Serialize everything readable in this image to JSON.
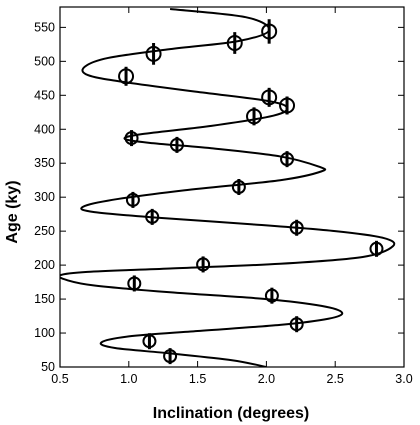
{
  "chart_data": {
    "type": "scatter",
    "title": "",
    "xlabel": "Inclination (degrees)",
    "ylabel": "Age (ky)",
    "xlim": [
      0.5,
      3.0
    ],
    "ylim": [
      50,
      580
    ],
    "xticks": [
      "0.5",
      "1.0",
      "1.5",
      "2.0",
      "2.5",
      "3.0"
    ],
    "yticks": [
      "50",
      "100",
      "150",
      "200",
      "250",
      "300",
      "350",
      "400",
      "450",
      "500",
      "550"
    ],
    "grid": false,
    "legend": "none",
    "series": [
      {
        "kind": "points",
        "x": [
          1.3,
          1.15,
          2.22,
          1.04,
          2.04,
          1.54,
          2.8,
          2.22,
          1.17,
          1.03,
          1.8,
          2.15,
          1.35,
          1.02,
          1.91,
          2.15,
          2.02,
          0.98,
          1.18,
          1.77,
          2.02
        ],
        "y": [
          66,
          88,
          113,
          173,
          155,
          201,
          224,
          255,
          271,
          296,
          315,
          356,
          377,
          387,
          419,
          435,
          447,
          478,
          511,
          527,
          544
        ],
        "err": [
          0.03,
          0.03,
          0.03,
          0.03,
          0.03,
          0.03,
          0.03,
          0.03,
          0.03,
          0.03,
          0.03,
          0.03,
          0.04,
          0.04,
          0.06,
          0.06,
          0.07,
          0.07,
          0.08,
          0.08,
          0.09
        ]
      },
      {
        "kind": "curve",
        "x": [
          2.0,
          1.75,
          1.3,
          0.9,
          0.8,
          1.0,
          1.5,
          2.1,
          2.45,
          2.55,
          2.4,
          2.0,
          1.3,
          0.75,
          0.55,
          0.5,
          0.7,
          1.3,
          2.1,
          2.7,
          2.92,
          2.85,
          2.5,
          1.9,
          1.2,
          0.75,
          0.66,
          0.85,
          1.4,
          2.1,
          2.4,
          2.38,
          2.1,
          1.6,
          1.15,
          0.97,
          1.1,
          1.6,
          2.05,
          2.15,
          2.0,
          1.5,
          0.95,
          0.7,
          0.68,
          0.85,
          1.3,
          1.8,
          2.02,
          1.85,
          1.3
        ],
        "y": [
          50,
          60,
          70,
          78,
          86,
          95,
          103,
          112,
          121,
          130,
          140,
          150,
          160,
          170,
          178,
          185,
          190,
          195,
          202,
          212,
          228,
          240,
          250,
          260,
          270,
          278,
          285,
          295,
          310,
          325,
          338,
          345,
          360,
          372,
          380,
          386,
          393,
          405,
          420,
          432,
          442,
          455,
          470,
          480,
          492,
          505,
          518,
          530,
          546,
          565,
          577
        ]
      }
    ]
  }
}
